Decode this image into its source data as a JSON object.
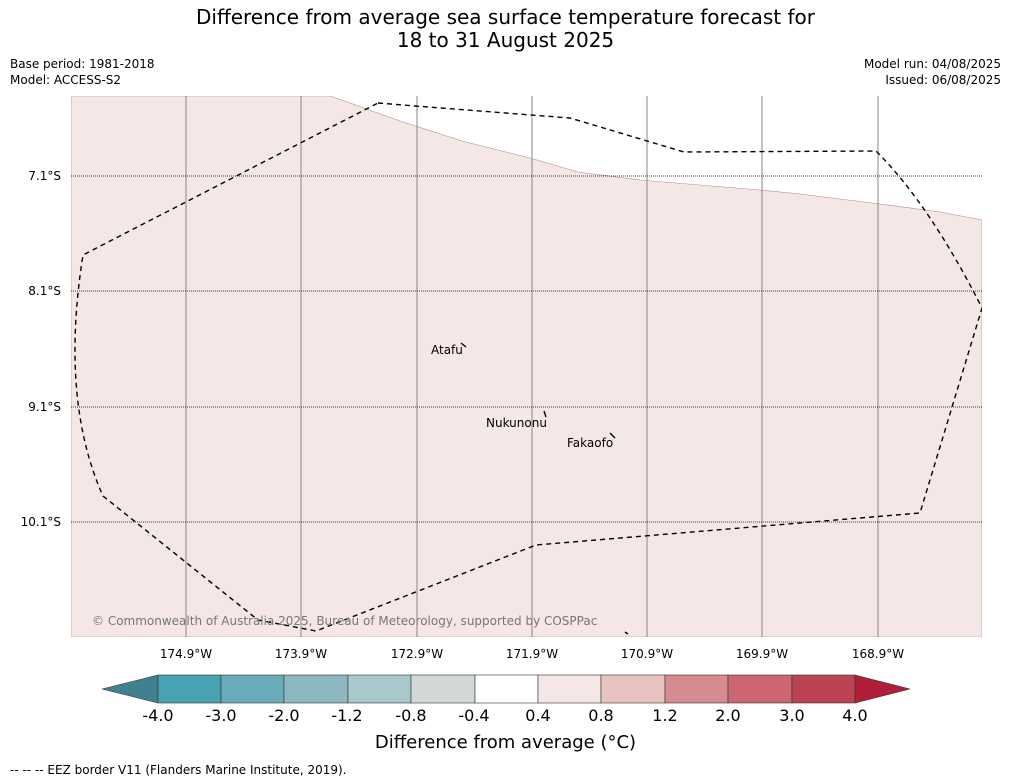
{
  "title_line1": "Difference from average sea surface temperature forecast for",
  "title_line2": "18 to 31 August 2025",
  "base_period": "Base period: 1981-2018",
  "model": "Model: ACCESS-S2",
  "model_run": "Model run: 04/08/2025",
  "issued": "Issued: 06/08/2025",
  "latitude_labels": [
    "7.1°S",
    "8.1°S",
    "9.1°S",
    "10.1°S"
  ],
  "longitude_labels": [
    "174.9°W",
    "173.9°W",
    "172.9°W",
    "171.9°W",
    "170.9°W",
    "169.9°W",
    "168.9°W"
  ],
  "places": {
    "atafu": "Atafu",
    "nukunonu": "Nukunonu",
    "fakaofo": "Fakaofo"
  },
  "copyright": "© Commonwealth of Australia 2025, Bureau of Meteorology, supported by COSPPac",
  "colorbar": {
    "ticks": [
      "-4.0",
      "-3.0",
      "-2.0",
      "-1.2",
      "-0.8",
      "-0.4",
      "0.4",
      "0.8",
      "1.2",
      "2.0",
      "3.0",
      "4.0"
    ],
    "colors": [
      "#3f818c",
      "#47a3b3",
      "#6aabbb",
      "#8db7c1",
      "#a9c8cc",
      "#d2d7d7",
      "#ffffff",
      "#f5e7e6",
      "#e8c2be",
      "#d68b91",
      "#cc6670",
      "#bb4353",
      "#b01e3a"
    ],
    "label": "Difference from average (°C)"
  },
  "map_fill_color": "#f5e7e6",
  "legend": "--  --  -- EEZ border V11 (Flanders Marine Institute, 2019)."
}
